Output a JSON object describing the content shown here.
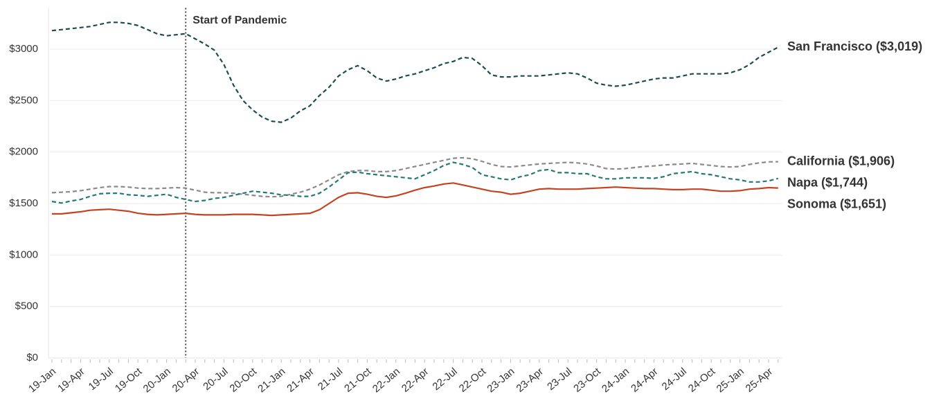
{
  "chart_data": {
    "type": "line",
    "categories": [
      "19-Jan",
      null,
      null,
      "19-Apr",
      null,
      null,
      "19-Jul",
      null,
      null,
      "19-Oct",
      null,
      null,
      "20-Jan",
      null,
      null,
      "20-Apr",
      null,
      null,
      "20-Jul",
      null,
      null,
      "20-Oct",
      null,
      null,
      "21-Jan",
      null,
      null,
      "21-Apr",
      null,
      null,
      "21-Jul",
      null,
      null,
      "21-Oct",
      null,
      null,
      "22-Jan",
      null,
      null,
      "22-Apr",
      null,
      null,
      "22-Jul",
      null,
      null,
      "22-Oct",
      null,
      null,
      "23-Jan",
      null,
      null,
      "23-Apr",
      null,
      null,
      "23-Jul",
      null,
      null,
      "23-Oct",
      null,
      null,
      "24-Jan",
      null,
      null,
      "24-Apr",
      null,
      null,
      "24-Jul",
      null,
      null,
      "24-Oct",
      null,
      null,
      "25-Jan",
      null,
      null,
      "25-Apr",
      null
    ],
    "series": [
      {
        "name": "San Francisco ($3,019)",
        "color": "#1b4e4b",
        "dashed": true,
        "values": [
          3180,
          3190,
          3200,
          3210,
          3220,
          3240,
          3260,
          3260,
          3250,
          3230,
          3190,
          3150,
          3130,
          3140,
          3150,
          3100,
          3050,
          2990,
          2850,
          2650,
          2500,
          2410,
          2340,
          2300,
          2290,
          2330,
          2400,
          2450,
          2550,
          2630,
          2740,
          2800,
          2840,
          2790,
          2720,
          2690,
          2710,
          2740,
          2760,
          2790,
          2820,
          2860,
          2880,
          2920,
          2910,
          2840,
          2750,
          2730,
          2730,
          2740,
          2740,
          2740,
          2750,
          2760,
          2770,
          2760,
          2720,
          2670,
          2650,
          2640,
          2650,
          2670,
          2690,
          2710,
          2720,
          2720,
          2740,
          2760,
          2760,
          2760,
          2760,
          2770,
          2800,
          2850,
          2920,
          2970,
          3019
        ]
      },
      {
        "name": "California ($1,906)",
        "color": "#8a8a8a",
        "dashed": true,
        "values": [
          1605,
          1610,
          1615,
          1625,
          1640,
          1655,
          1665,
          1665,
          1660,
          1650,
          1645,
          1645,
          1650,
          1655,
          1650,
          1630,
          1610,
          1605,
          1605,
          1600,
          1590,
          1580,
          1570,
          1565,
          1570,
          1590,
          1610,
          1640,
          1680,
          1730,
          1780,
          1810,
          1820,
          1820,
          1810,
          1810,
          1820,
          1840,
          1860,
          1880,
          1900,
          1920,
          1940,
          1945,
          1935,
          1910,
          1880,
          1860,
          1855,
          1865,
          1875,
          1885,
          1890,
          1895,
          1900,
          1895,
          1885,
          1865,
          1840,
          1835,
          1840,
          1850,
          1860,
          1865,
          1875,
          1880,
          1885,
          1890,
          1880,
          1870,
          1860,
          1855,
          1860,
          1880,
          1895,
          1905,
          1906
        ]
      },
      {
        "name": "Napa ($1,744)",
        "color": "#217a74",
        "dashed": true,
        "values": [
          1520,
          1505,
          1525,
          1540,
          1570,
          1595,
          1600,
          1600,
          1585,
          1580,
          1570,
          1580,
          1590,
          1560,
          1540,
          1520,
          1530,
          1550,
          1560,
          1580,
          1600,
          1620,
          1610,
          1600,
          1585,
          1580,
          1570,
          1570,
          1600,
          1660,
          1730,
          1800,
          1805,
          1790,
          1780,
          1770,
          1760,
          1750,
          1740,
          1780,
          1820,
          1870,
          1900,
          1880,
          1850,
          1780,
          1760,
          1740,
          1730,
          1760,
          1780,
          1820,
          1830,
          1800,
          1800,
          1790,
          1790,
          1760,
          1740,
          1740,
          1750,
          1750,
          1750,
          1745,
          1760,
          1790,
          1800,
          1810,
          1790,
          1780,
          1760,
          1740,
          1730,
          1710,
          1710,
          1720,
          1744
        ]
      },
      {
        "name": "Sonoma ($1,651)",
        "color": "#c4421f",
        "dashed": false,
        "values": [
          1400,
          1400,
          1410,
          1420,
          1435,
          1440,
          1445,
          1435,
          1425,
          1405,
          1395,
          1390,
          1395,
          1400,
          1405,
          1395,
          1390,
          1390,
          1390,
          1395,
          1395,
          1395,
          1390,
          1385,
          1390,
          1395,
          1400,
          1405,
          1440,
          1500,
          1560,
          1600,
          1605,
          1590,
          1570,
          1560,
          1575,
          1600,
          1630,
          1655,
          1670,
          1690,
          1700,
          1680,
          1660,
          1640,
          1620,
          1610,
          1590,
          1600,
          1620,
          1640,
          1645,
          1640,
          1640,
          1640,
          1645,
          1650,
          1655,
          1660,
          1655,
          1650,
          1645,
          1645,
          1640,
          1635,
          1635,
          1640,
          1640,
          1630,
          1620,
          1620,
          1625,
          1640,
          1645,
          1655,
          1651
        ]
      }
    ],
    "ylim": [
      0,
      3400
    ],
    "yticks": [
      {
        "value": 0,
        "label": "$0"
      },
      {
        "value": 500,
        "label": "$500"
      },
      {
        "value": 1000,
        "label": "$1000"
      },
      {
        "value": 1500,
        "label": "$1500"
      },
      {
        "value": 2000,
        "label": "$2000"
      },
      {
        "value": 2500,
        "label": "$2500"
      },
      {
        "value": 3000,
        "label": "$3000"
      }
    ],
    "grid": true,
    "annotation": {
      "text": "Start of Pandemic",
      "at": 14
    }
  }
}
